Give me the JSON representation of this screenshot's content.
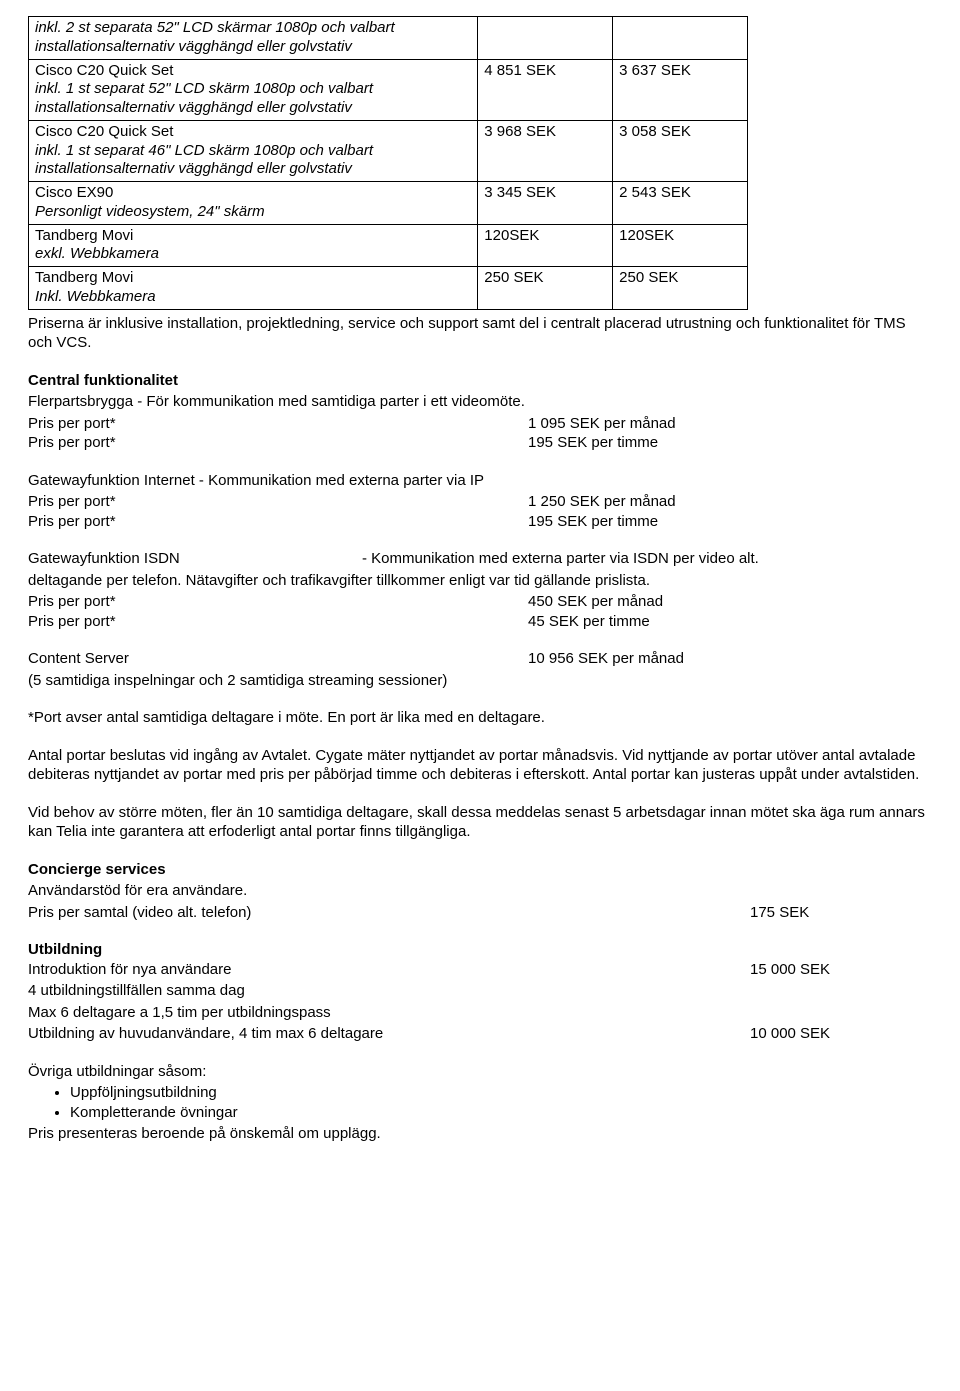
{
  "table": {
    "rows": [
      {
        "main": "",
        "desc": "inkl. 2 st separata 52\" LCD skärmar 1080p och valbart installationsalternativ vägghängd eller golvstativ",
        "c2": "",
        "c3": ""
      },
      {
        "main": "Cisco C20 Quick Set",
        "desc": "inkl. 1 st separat 52\" LCD skärm 1080p och valbart installationsalternativ vägghängd eller golvstativ",
        "c2": "4 851 SEK",
        "c3": "3 637 SEK"
      },
      {
        "main": "Cisco C20 Quick Set",
        "desc": "inkl. 1 st separat 46\" LCD skärm 1080p och valbart installationsalternativ vägghängd eller golvstativ",
        "c2": "3 968 SEK",
        "c3": "3 058 SEK"
      },
      {
        "main": "Cisco EX90",
        "desc": "Personligt videosystem, 24\" skärm",
        "c2": "3 345 SEK",
        "c3": "2 543 SEK"
      },
      {
        "main": "Tandberg Movi",
        "desc": "exkl. Webbkamera",
        "c2": "120SEK",
        "c3": "120SEK"
      },
      {
        "main": "Tandberg Movi",
        "desc": "Inkl. Webbkamera",
        "c2": "250 SEK",
        "c3": "250 SEK"
      }
    ]
  },
  "priser_note": "Priserna är inklusive installation, projektledning, service och support samt del i centralt placerad utrustning och funktionalitet för TMS och VCS.",
  "central": {
    "head": "Central funktionalitet",
    "flerparts": "Flerpartsbrygga - För kommunikation med samtidiga parter i ett videomöte.",
    "pris_per_port": "Pris per port*",
    "p1v1": "1 095 SEK per månad",
    "p1v2": "195 SEK per timme",
    "gw_ip": "Gatewayfunktion Internet -  Kommunikation med externa parter via IP",
    "p2v1": "1 250 SEK per månad",
    "p2v2": "195 SEK per timme",
    "gw_isdn_l": "Gatewayfunktion ISDN",
    "gw_isdn_r": "- Kommunikation med externa parter via ISDN per video alt.",
    "gw_isdn2": "deltagande per telefon. Nätavgifter och trafikavgifter tillkommer enligt var tid gällande prislista.",
    "p3v1": "450 SEK per månad",
    "p3v2": "45 SEK per timme",
    "content_server": "Content Server",
    "content_server_price": "10 956 SEK per månad",
    "content_server_note": "(5 samtidiga inspelningar och 2 samtidiga streaming sessioner)",
    "port_note": "*Port avser antal samtidiga deltagare i möte. En port är lika med en deltagare.",
    "antal_portar": "Antal portar beslutas vid ingång av Avtalet. Cygate mäter nyttjandet av portar månadsvis. Vid nyttjande av portar utöver antal avtalade debiteras nyttjandet av portar med pris per påbörjad timme och debiteras i efterskott.  Antal portar kan justeras uppåt under avtalstiden.",
    "vid_behov": "Vid behov av större möten, fler än 10 samtidiga deltagare, skall dessa meddelas senast 5 arbetsdagar innan mötet ska äga rum annars kan Telia inte garantera att erfoderligt antal portar finns tillgängliga."
  },
  "concierge": {
    "head": "Concierge services",
    "line1": "Användarstöd för era användare.",
    "label": "Pris per samtal (video alt. telefon)",
    "price": "175 SEK"
  },
  "utbildning": {
    "head": "Utbildning",
    "l1_label": "Introduktion för nya användare",
    "l1_price": "15 000 SEK",
    "l2": "4 utbildningstillfällen samma dag",
    "l3": "Max 6 deltagare a 1,5 tim per utbildningspass",
    "l4_label": "Utbildning av huvudanvändare, 4 tim max 6 deltagare",
    "l4_price": "10 000 SEK"
  },
  "ovriga": {
    "head": "Övriga utbildningar såsom:",
    "b1": "Uppföljningsutbildning",
    "b2": "Kompletterande övningar",
    "l2": "Pris presenteras beroende på önskemål om upplägg."
  }
}
